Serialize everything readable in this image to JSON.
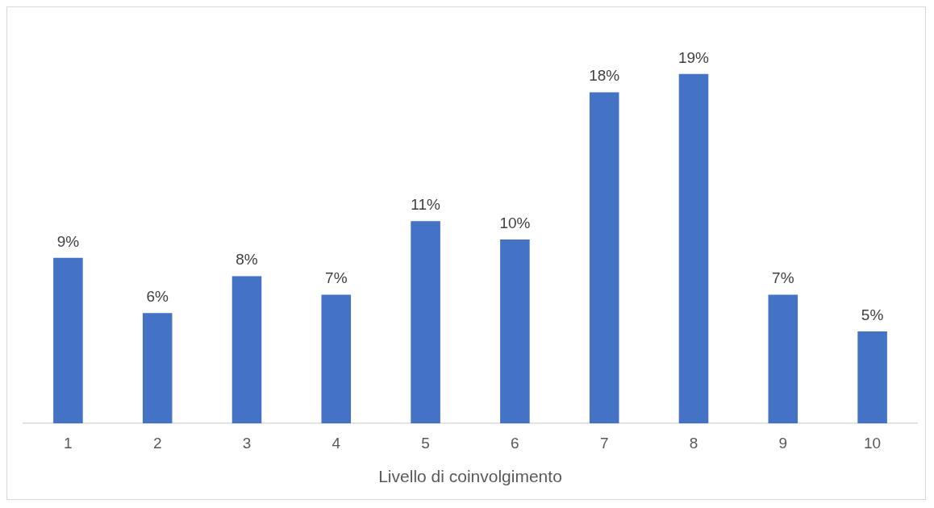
{
  "chart_data": {
    "type": "bar",
    "xlabel": "Livello di coinvolgimento",
    "categories": [
      "1",
      "2",
      "3",
      "4",
      "5",
      "6",
      "7",
      "8",
      "9",
      "10"
    ],
    "values": [
      9,
      6,
      8,
      7,
      11,
      10,
      18,
      19,
      7,
      5
    ],
    "value_labels": [
      "9%",
      "6%",
      "8%",
      "7%",
      "11%",
      "10%",
      "18%",
      "19%",
      "7%",
      "5%"
    ],
    "color": "#4472c4",
    "grid": false,
    "legend": false,
    "tick_labels": "x"
  }
}
